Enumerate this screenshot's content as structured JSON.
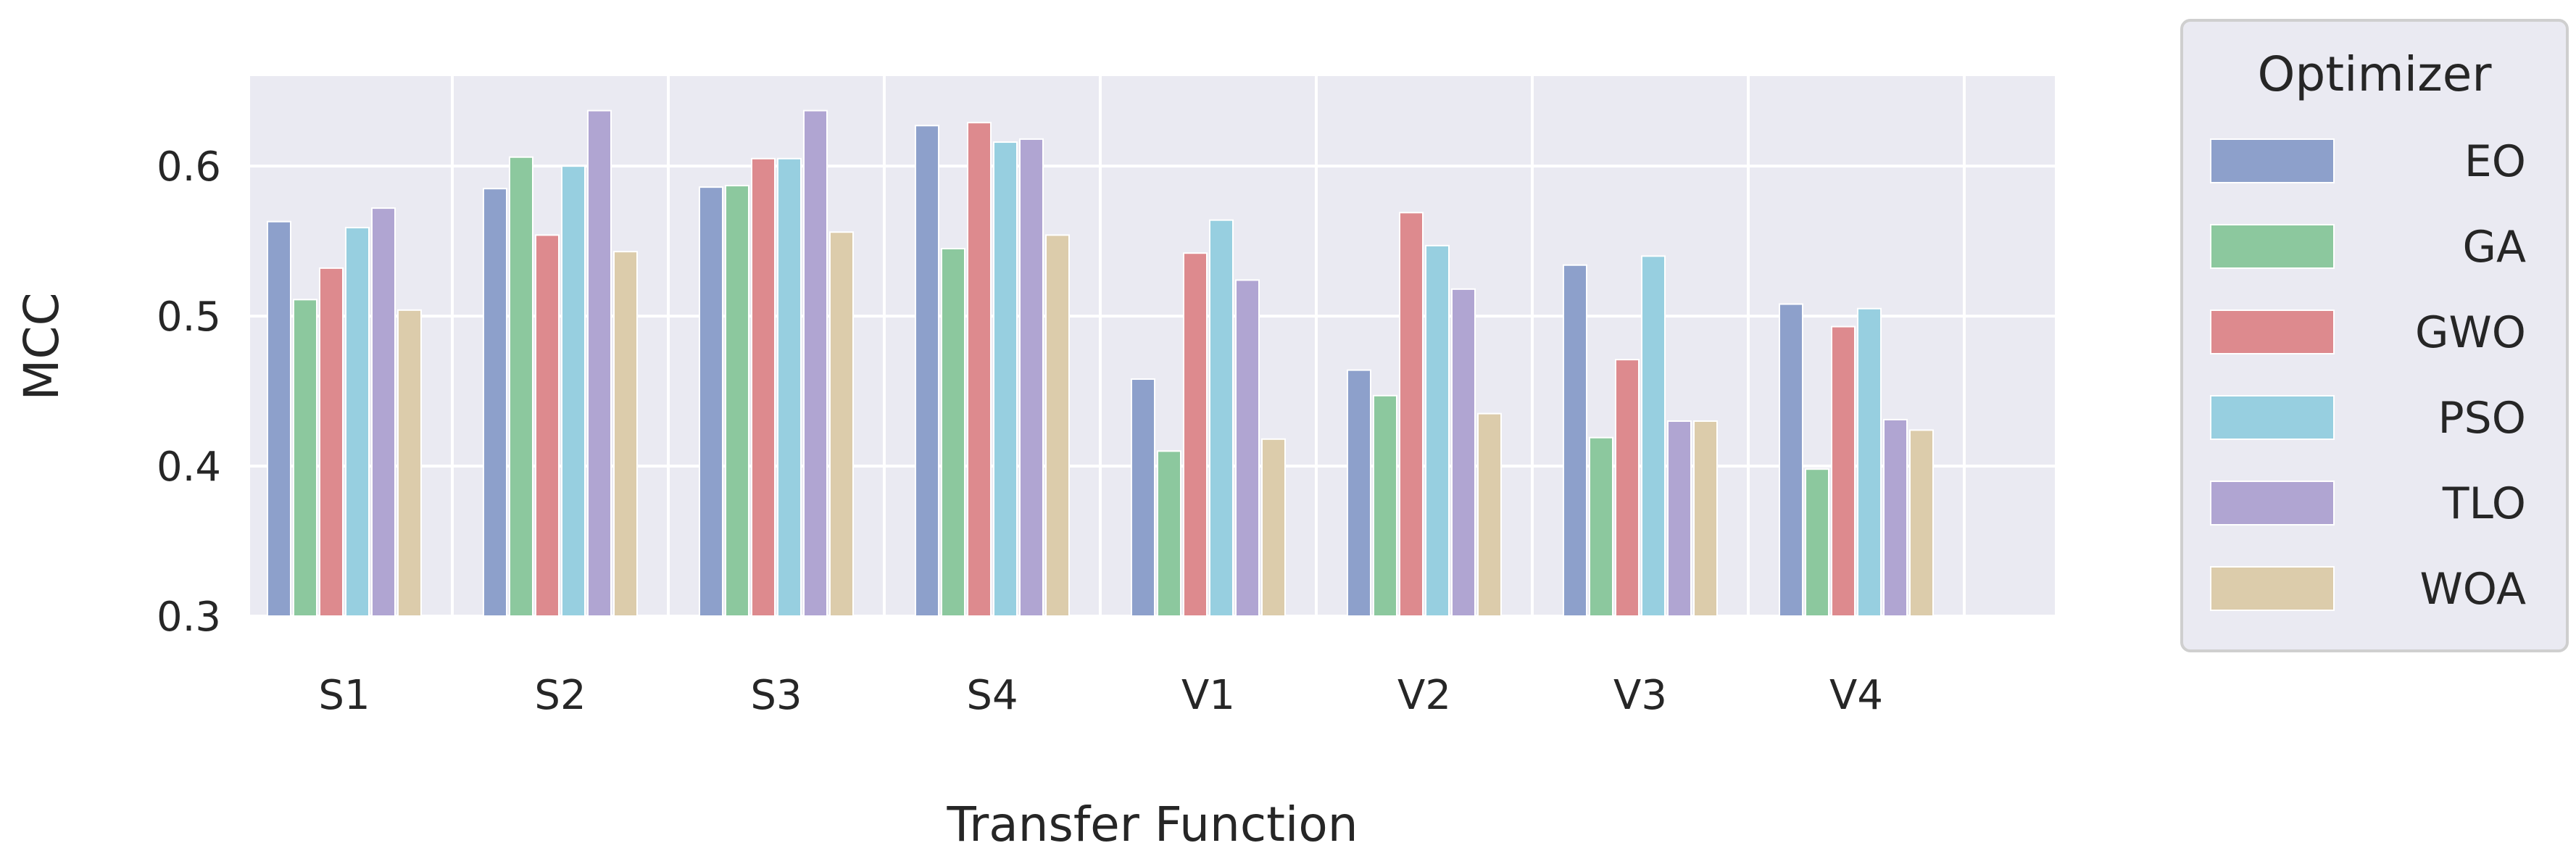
{
  "chart_data": {
    "type": "bar",
    "xlabel": "Transfer Function",
    "ylabel": "MCC",
    "ylim": [
      0.3,
      0.66
    ],
    "yticks": [
      "0.3",
      "0.4",
      "0.5",
      "0.6"
    ],
    "categories": [
      "S1",
      "S2",
      "S3",
      "S4",
      "V1",
      "V2",
      "V3",
      "V4"
    ],
    "grid": true,
    "legend": {
      "title": "Optimizer",
      "placement": "outside-right"
    },
    "series": [
      {
        "name": "EO",
        "color": "#8da0cb",
        "values": [
          0.563,
          0.585,
          0.586,
          0.627,
          0.458,
          0.464,
          0.534,
          0.508
        ]
      },
      {
        "name": "GA",
        "color": "#8cc89e",
        "values": [
          0.511,
          0.606,
          0.587,
          0.545,
          0.41,
          0.447,
          0.419,
          0.398
        ]
      },
      {
        "name": "GWO",
        "color": "#dd8a8e",
        "values": [
          0.532,
          0.554,
          0.605,
          0.629,
          0.542,
          0.569,
          0.471,
          0.493
        ]
      },
      {
        "name": "PSO",
        "color": "#97cfe0",
        "values": [
          0.559,
          0.6,
          0.605,
          0.616,
          0.564,
          0.547,
          0.54,
          0.505
        ]
      },
      {
        "name": "TLO",
        "color": "#b0a5d2",
        "values": [
          0.572,
          0.637,
          0.637,
          0.618,
          0.524,
          0.518,
          0.43,
          0.431
        ]
      },
      {
        "name": "WOA",
        "color": "#dcccab",
        "values": [
          0.504,
          0.543,
          0.556,
          0.554,
          0.418,
          0.435,
          0.43,
          0.424
        ]
      }
    ]
  }
}
